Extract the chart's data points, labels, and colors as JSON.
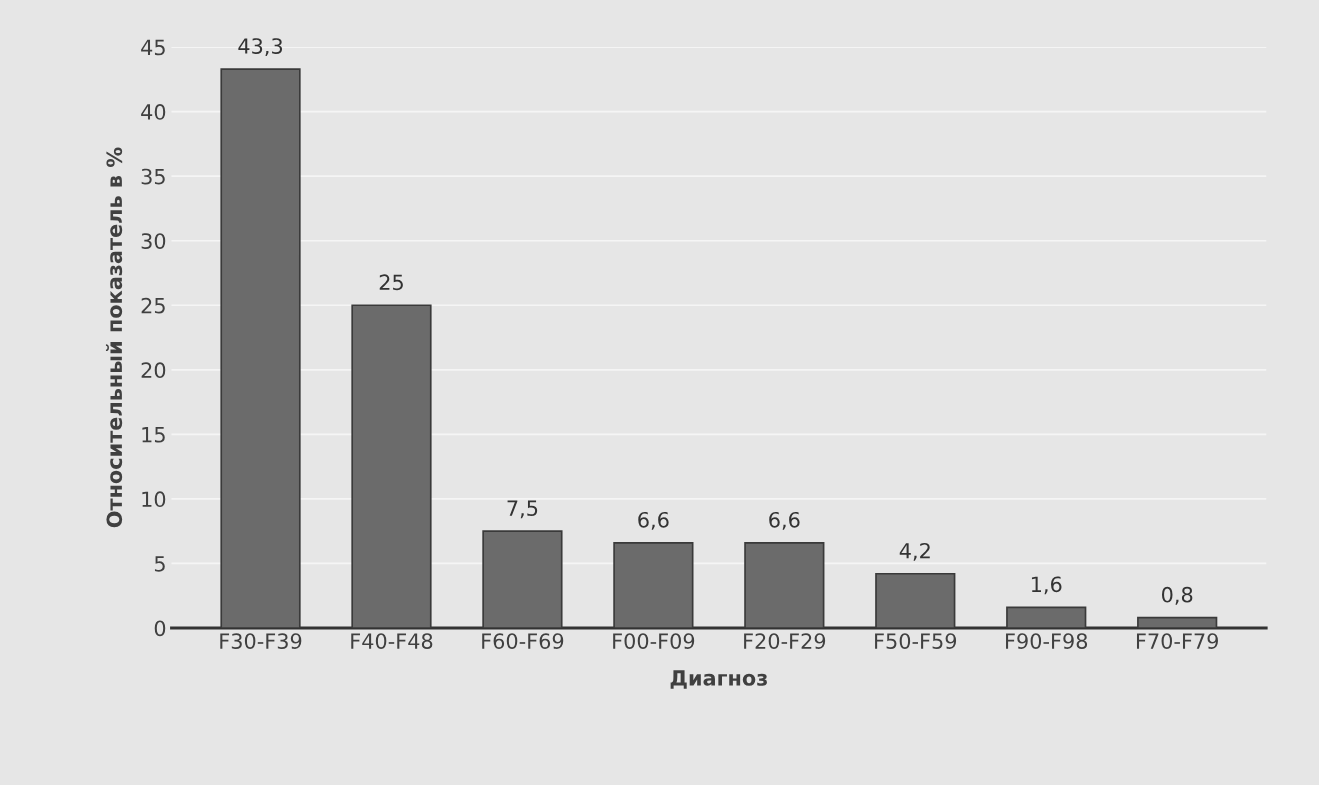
{
  "chart_data": {
    "type": "bar",
    "xlabel": "Диагноз",
    "ylabel": "Относительный показатель в %",
    "categories": [
      "F30-F39",
      "F40-F48",
      "F60-F69",
      "F00-F09",
      "F20-F29",
      "F50-F59",
      "F90-F98",
      "F70-F79"
    ],
    "values": [
      43.3,
      25,
      7.5,
      6.6,
      6.6,
      4.2,
      1.6,
      0.8
    ],
    "value_labels": [
      "43,3",
      "25",
      "7,5",
      "6,6",
      "6,6",
      "4,2",
      "1,6",
      "0,8"
    ],
    "color": "#6b6b6b",
    "ylim": [
      0,
      45
    ],
    "yticks": [
      0,
      5,
      10,
      15,
      20,
      25,
      30,
      35,
      40,
      45
    ],
    "grid": "y"
  }
}
